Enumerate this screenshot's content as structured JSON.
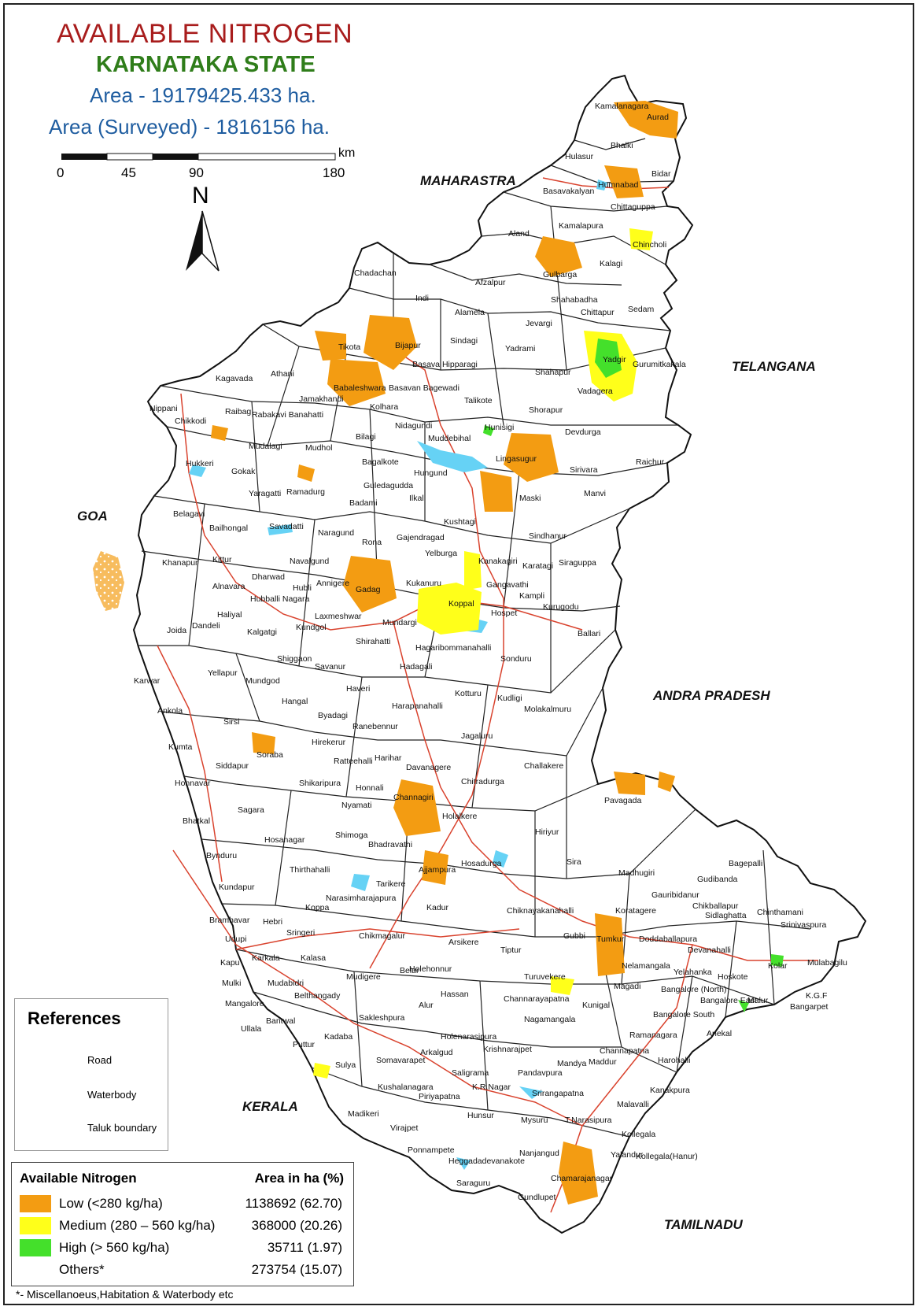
{
  "title": {
    "main": "AVAILABLE NITROGEN",
    "state": "KARNATAKA STATE",
    "area": "Area - 19179425.433 ha.",
    "area_surveyed": "Area (Surveyed) - 1816156  ha."
  },
  "scale_bar": {
    "unit": "km",
    "ticks": [
      "0",
      "45",
      "90",
      "180"
    ]
  },
  "north_arrow": {
    "label": "N",
    "icon": "north-arrow-icon"
  },
  "regions": [
    {
      "id": "maharastra",
      "label": "MAHARASTRA"
    },
    {
      "id": "telangana",
      "label": "TELANGANA"
    },
    {
      "id": "goa",
      "label": "GOA"
    },
    {
      "id": "andra-pradesh",
      "label": "ANDRA PRADESH"
    },
    {
      "id": "kerala",
      "label": "KERALA"
    },
    {
      "id": "tamilnadu",
      "label": "TAMILNADU"
    }
  ],
  "colors": {
    "low": "#f39c12",
    "medium": "#ffff1a",
    "high": "#44e02b",
    "road": "#d9432e",
    "waterbody": "#66d2f5",
    "boundary": "#111111"
  },
  "references": {
    "title": "References",
    "items": [
      {
        "label": "Road",
        "icon": "road-line-icon"
      },
      {
        "label": "Waterbody",
        "icon": "waterbody-swatch-icon"
      },
      {
        "label": "Taluk boundary",
        "icon": "taluk-boundary-icon"
      }
    ]
  },
  "legend": {
    "header_label": "Available Nitrogen",
    "header_value": "Area in ha (%)",
    "rows": [
      {
        "label": "Low (<280 kg/ha)",
        "value": "1138692 (62.70)",
        "color": "#f39c12"
      },
      {
        "label": "Medium (280 – 560 kg/ha)",
        "value": "368000 (20.26)",
        "color": "#ffff1a"
      },
      {
        "label": "High (> 560 kg/ha)",
        "value": "35711 (1.97)",
        "color": "#44e02b"
      },
      {
        "label": "Others*",
        "value": "273754 (15.07)",
        "color": ""
      }
    ]
  },
  "footnote": "*- Miscellanoeus,Habitation & Waterbody etc",
  "taluks": [
    "Kamalanagara",
    "Aurad",
    "Bhalki",
    "Hulasur",
    "Bidar",
    "Humnabad",
    "Basavakalyan",
    "Chittaguppa",
    "Kamalapura",
    "Aland",
    "Chincholi",
    "Kalagi",
    "Gulbarga",
    "Afzalpur",
    "Chadachan",
    "Indi",
    "Shahabadha",
    "Chittapur",
    "Sedam",
    "Alamela",
    "Jevargi",
    "Sindagi",
    "Yadrami",
    "Tikota",
    "Bijapur",
    "Basava Hipparagi",
    "Yadgir",
    "Gurumitkakala",
    "Shahapur",
    "Vadagera",
    "Kagavada",
    "Athani",
    "Babaleshwara",
    "Basavan Bagewadi",
    "Jamakhandi",
    "Talikote",
    "Nippani",
    "Raibag",
    "Rabakavi Banahatti",
    "Kolhara",
    "Shorapur",
    "Chikkodi",
    "Nidagundi",
    "Bilagi",
    "Muddebihal",
    "Hunisigi",
    "Devdurga",
    "Mudalagi",
    "Mudhol",
    "Bagalkote",
    "Lingasugur",
    "Raichur",
    "Hukkeri",
    "Gokak",
    "Hungund",
    "Sirivara",
    "Yaragatti",
    "Ramadurg",
    "Guledagudda",
    "Ilkal",
    "Maski",
    "Manvi",
    "Belagavi",
    "Badami",
    "Savadatti",
    "Bailhongal",
    "Naragund",
    "Kushtagi",
    "Sindhanur",
    "Rona",
    "Gajendragad",
    "Khanapur",
    "Kittur",
    "Navalgund",
    "Yelburga",
    "Kanakagiri",
    "Karatagi",
    "Siraguppa",
    "Dharwad",
    "Annigere",
    "Kukanuru",
    "Gangavathi",
    "Alnavara",
    "Gadag",
    "Hubli",
    "Hubballi Nagara",
    "Kampli",
    "Koppal",
    "Haliyal",
    "Joida",
    "Dandeli",
    "Laxmeshwar",
    "Kundgol",
    "Mundargi",
    "Hospet",
    "Kurugodu",
    "Kalgatgi",
    "Shirahatti",
    "Hagaribommanahalli",
    "Ballari",
    "Shiggaon",
    "Savanur",
    "Yellapur",
    "Hadagali",
    "Sonduru",
    "Karwar",
    "Mundgod",
    "Haveri",
    "Kotturu",
    "Kudligi",
    "Hangal",
    "Ankola",
    "Harapanahalli",
    "Molakalmuru",
    "Sirsi",
    "Byadagi",
    "Ranebennur",
    "Jagaluru",
    "Hirekerur",
    "Kumta",
    "Soraba",
    "Ratteehalli",
    "Harihar",
    "Siddapur",
    "Challakere",
    "Davanagere",
    "Honnavar",
    "Shikaripura",
    "Honnali",
    "Chitradurga",
    "Pavagada",
    "Sagara",
    "Nyamati",
    "Channagiri",
    "Bhatkal",
    "Holalkere",
    "Hosanagar",
    "Shimoga",
    "Hiriyur",
    "Bhadravathi",
    "Bynduru",
    "Sira",
    "Bagepalli",
    "Thirthahalli",
    "Hosadurga",
    "Madhugiri",
    "Kundapur",
    "Holehonnur",
    "Gudibanda",
    "Tarikere",
    "Ajjampura",
    "Gauribidanur",
    "Chikballapur",
    "Narasimharajapura",
    "Chinthamani",
    "Koppa",
    "Kadur",
    "Chiknayakanahalli",
    "Sidlaghatta",
    "Hebri",
    "Koratagere",
    "Srinivaspura",
    "Bramhavar",
    "Sringeri",
    "Udupi",
    "Kapu",
    "Chikmagalur",
    "Gubbi",
    "Tumkur",
    "Doddaballapura",
    "Devanahalli",
    "Arsikere",
    "Karkala",
    "Kalasa",
    "Tiptur",
    "Nelamangala",
    "Yelahanka",
    "Hoskote",
    "Kolar",
    "Mulabagilu",
    "Mulki",
    "Mudabidri",
    "Belur",
    "Mudigere",
    "Turuvekere",
    "Magadi",
    "Bangalore (North)",
    "Mangalore",
    "Belthangady",
    "Hassan",
    "Channarayapatna",
    "Kunigal",
    "Bangalore East",
    "Malur",
    "K.G.F",
    "Bangarpet",
    "Bantwal",
    "Sakleshpura",
    "Alur",
    "Nagamangala",
    "Bangalore South",
    "Ullala",
    "Holenarasipura",
    "Ramanagara",
    "Anekal",
    "Puttur",
    "Kadaba",
    "Arkalgud",
    "Krishnarajpet",
    "Channapatna",
    "Sulya",
    "Somavarapet",
    "Saligrama",
    "Mandya",
    "Maddur",
    "Harohalli",
    "Kushalanagara",
    "Piriyapatna",
    "K.R.Nagar",
    "Pandavpura",
    "Srirangapatna",
    "Kanakpura",
    "Madikeri",
    "Hunsur",
    "Mysuru",
    "T.Narasipura",
    "Malavalli",
    "Virajpet",
    "Kollegala",
    "Ponnampete",
    "Heggadadevanakote",
    "Nanjangud",
    "Yalandur",
    "Kollegala(Hanur)",
    "Saraguru",
    "Chamarajanagar",
    "Gundlupet"
  ]
}
